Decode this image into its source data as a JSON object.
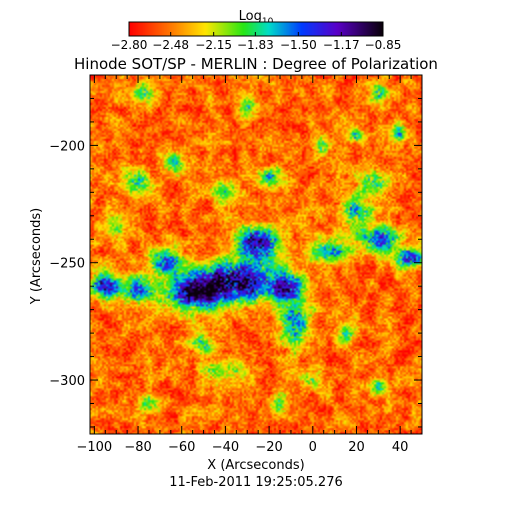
{
  "chart_data": {
    "type": "heatmap",
    "title": "Hinode SOT/SP - MERLIN : Degree of Polarization",
    "xlabel": "X (Arcseconds)",
    "ylabel": "Y (Arcseconds)",
    "footer": "11-Feb-2011 19:25:05.276",
    "xlim": [
      -102,
      50
    ],
    "ylim": [
      -323,
      -170
    ],
    "x_ticks": [
      -100,
      -80,
      -60,
      -40,
      -20,
      0,
      20,
      40
    ],
    "x_tick_labels": [
      "−100",
      "−80",
      "−60",
      "−40",
      "−20",
      "0",
      "20",
      "40"
    ],
    "y_ticks": [
      -200,
      -250,
      -300
    ],
    "y_tick_labels": [
      "−200",
      "−250",
      "−300"
    ],
    "colorbar": {
      "label_base": "Log",
      "label_sub": "10",
      "range": [
        -2.8,
        -0.85
      ],
      "ticks": [
        -2.8,
        -2.48,
        -2.15,
        -1.83,
        -1.5,
        -1.17,
        -0.85
      ],
      "tick_labels": [
        "−2.80",
        "−2.48",
        "−2.15",
        "−1.83",
        "−1.50",
        "−1.17",
        "−0.85"
      ]
    },
    "background_level": -2.75,
    "features": [
      {
        "x": -35,
        "y": -258,
        "sx": 14,
        "sy": 6,
        "amp": 1.5
      },
      {
        "x": -55,
        "y": -263,
        "sx": 10,
        "sy": 5,
        "amp": 1.3
      },
      {
        "x": -95,
        "y": -260,
        "sx": 5,
        "sy": 4,
        "amp": 1.3
      },
      {
        "x": -80,
        "y": -262,
        "sx": 5,
        "sy": 4,
        "amp": 1.0
      },
      {
        "x": -68,
        "y": -250,
        "sx": 6,
        "sy": 4,
        "amp": 0.9
      },
      {
        "x": -25,
        "y": -242,
        "sx": 7,
        "sy": 5,
        "amp": 1.4
      },
      {
        "x": -12,
        "y": -260,
        "sx": 5,
        "sy": 4,
        "amp": 1.0
      },
      {
        "x": -8,
        "y": -275,
        "sx": 5,
        "sy": 8,
        "amp": 0.9
      },
      {
        "x": 8,
        "y": -245,
        "sx": 6,
        "sy": 4,
        "amp": 0.9
      },
      {
        "x": 30,
        "y": -240,
        "sx": 7,
        "sy": 4,
        "amp": 1.0
      },
      {
        "x": 45,
        "y": -248,
        "sx": 5,
        "sy": 3,
        "amp": 1.1
      },
      {
        "x": 20,
        "y": -228,
        "sx": 5,
        "sy": 5,
        "amp": 0.8
      },
      {
        "x": 28,
        "y": -215,
        "sx": 4,
        "sy": 4,
        "amp": 0.8
      },
      {
        "x": -80,
        "y": -215,
        "sx": 4,
        "sy": 4,
        "amp": 0.7
      },
      {
        "x": -63,
        "y": -207,
        "sx": 3,
        "sy": 3,
        "amp": 0.7
      },
      {
        "x": -20,
        "y": -213,
        "sx": 4,
        "sy": 3,
        "amp": 0.7
      },
      {
        "x": -30,
        "y": -183,
        "sx": 3,
        "sy": 3,
        "amp": 0.7
      },
      {
        "x": -78,
        "y": -178,
        "sx": 3,
        "sy": 3,
        "amp": 0.7
      },
      {
        "x": 30,
        "y": -178,
        "sx": 3,
        "sy": 3,
        "amp": 0.7
      },
      {
        "x": 20,
        "y": -196,
        "sx": 3,
        "sy": 2,
        "amp": 0.7
      },
      {
        "x": -40,
        "y": -220,
        "sx": 4,
        "sy": 4,
        "amp": 0.6
      },
      {
        "x": -50,
        "y": -285,
        "sx": 4,
        "sy": 3,
        "amp": 0.7
      },
      {
        "x": -45,
        "y": -296,
        "sx": 4,
        "sy": 3,
        "amp": 0.6
      },
      {
        "x": 0,
        "y": -300,
        "sx": 3,
        "sy": 3,
        "amp": 0.6
      },
      {
        "x": 30,
        "y": -303,
        "sx": 3,
        "sy": 3,
        "amp": 0.6
      },
      {
        "x": -75,
        "y": -310,
        "sx": 3,
        "sy": 3,
        "amp": 0.6
      },
      {
        "x": -35,
        "y": -295,
        "sx": 3,
        "sy": 3,
        "amp": 0.6
      },
      {
        "x": 15,
        "y": -280,
        "sx": 3,
        "sy": 3,
        "amp": 0.6
      },
      {
        "x": 40,
        "y": -195,
        "sx": 3,
        "sy": 3,
        "amp": 0.7
      },
      {
        "x": -90,
        "y": -235,
        "sx": 3,
        "sy": 3,
        "amp": 0.6
      },
      {
        "x": -15,
        "y": -310,
        "sx": 3,
        "sy": 3,
        "amp": 0.5
      },
      {
        "x": 5,
        "y": -200,
        "sx": 3,
        "sy": 3,
        "amp": 0.6
      }
    ]
  }
}
